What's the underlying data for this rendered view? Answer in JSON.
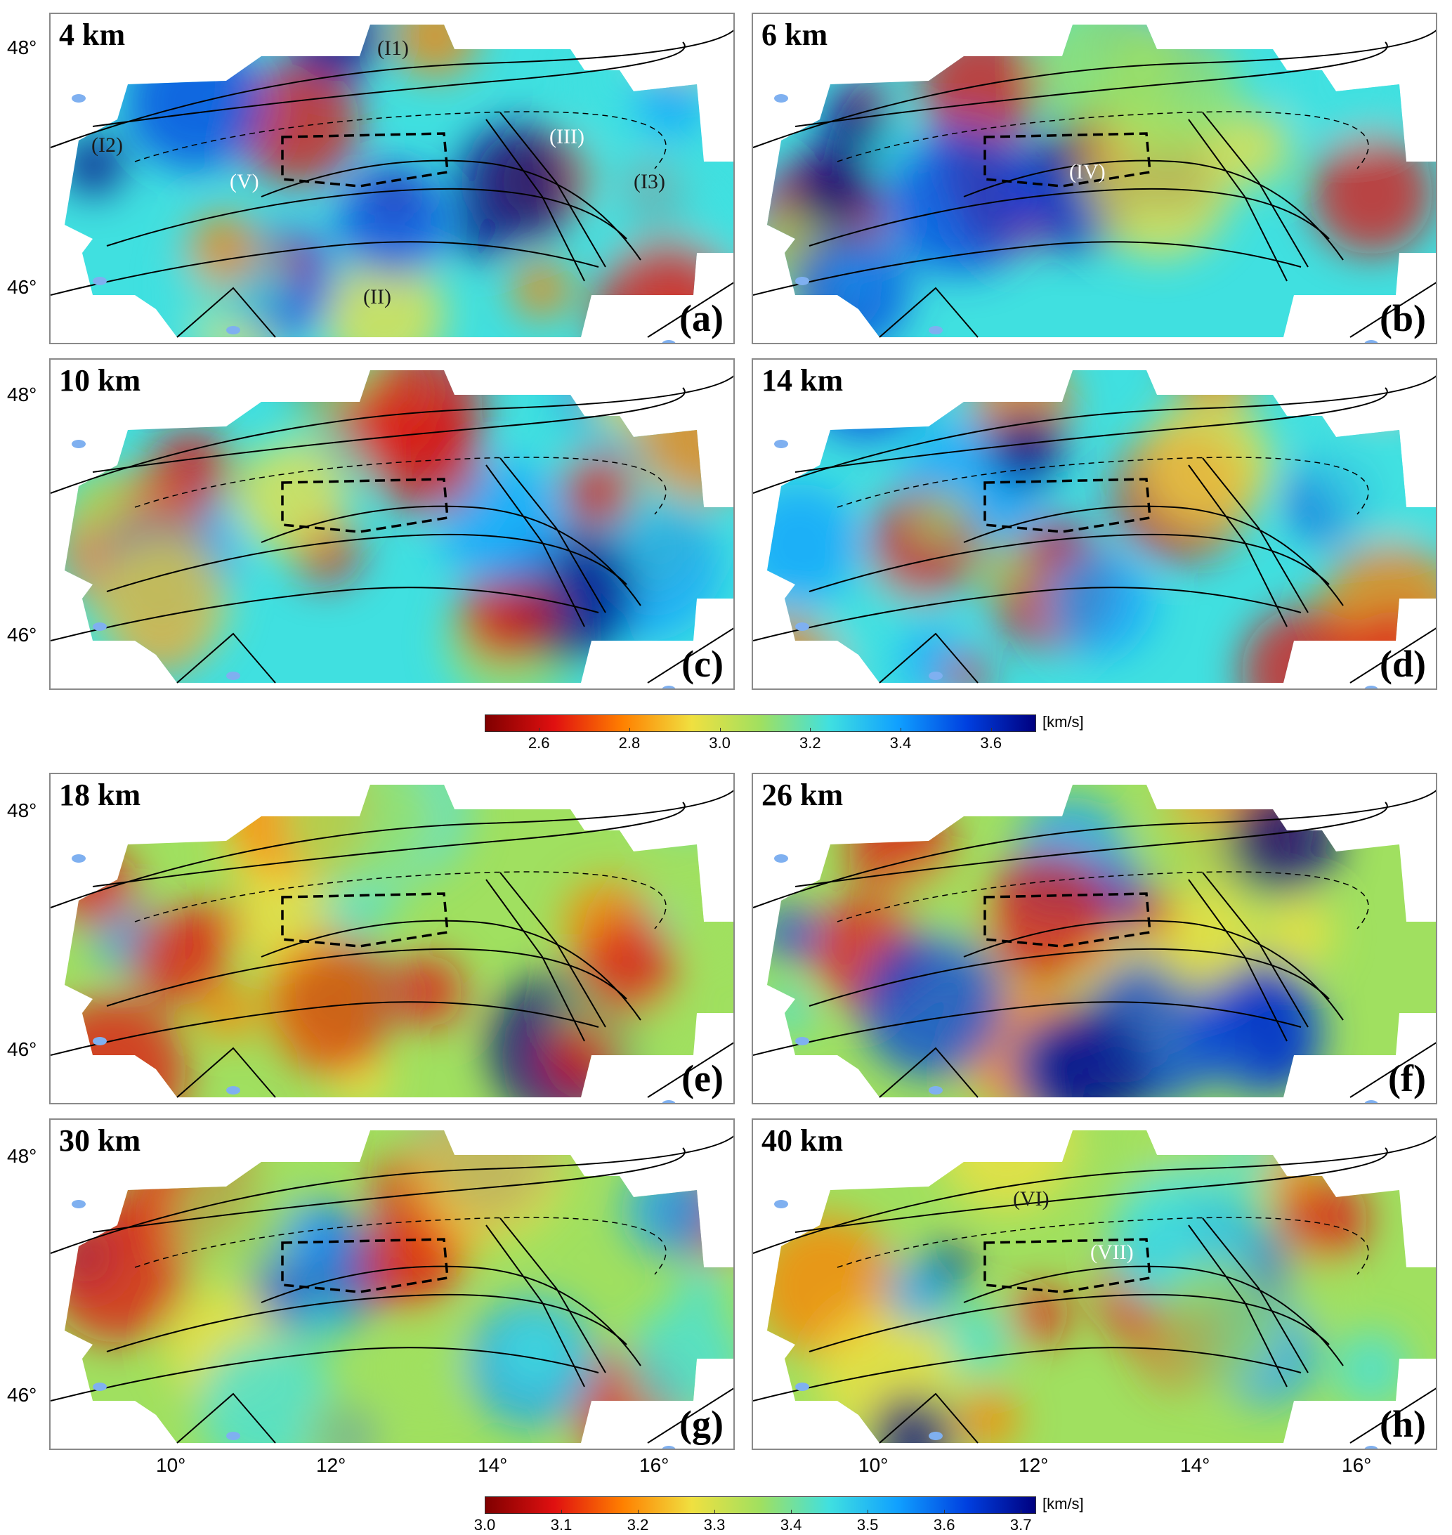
{
  "panels": [
    {
      "depth": "4 km",
      "letter": "(a)",
      "palette": "upper",
      "labels": [
        {
          "text": "(I1)",
          "color": "#1a1a1a"
        },
        {
          "text": "(I2)",
          "color": "#1a1a1a"
        },
        {
          "text": "(III)",
          "color": "#ffffff"
        },
        {
          "text": "(I3)",
          "color": "#1a1a1a"
        },
        {
          "text": "(V)",
          "color": "#ffffff"
        },
        {
          "text": "(II)",
          "color": "#1a1a1a"
        }
      ]
    },
    {
      "depth": "6 km",
      "letter": "(b)",
      "palette": "upper",
      "labels": [
        {
          "text": "(IV)",
          "color": "#ffffff"
        }
      ]
    },
    {
      "depth": "10 km",
      "letter": "(c)",
      "palette": "upper",
      "labels": []
    },
    {
      "depth": "14 km",
      "letter": "(d)",
      "palette": "upper",
      "labels": []
    },
    {
      "depth": "18 km",
      "letter": "(e)",
      "palette": "lower",
      "labels": []
    },
    {
      "depth": "26 km",
      "letter": "(f)",
      "palette": "lower",
      "labels": []
    },
    {
      "depth": "30 km",
      "letter": "(g)",
      "palette": "lower",
      "labels": []
    },
    {
      "depth": "40 km",
      "letter": "(h)",
      "palette": "lower",
      "labels": [
        {
          "text": "(VI)",
          "color": "#1a1a1a"
        },
        {
          "text": "(VII)",
          "color": "#ffffff"
        }
      ]
    }
  ],
  "y_axis_labels": [
    "48°",
    "46°"
  ],
  "x_axis_labels": [
    "10°",
    "12°",
    "14°",
    "16°"
  ],
  "colorbars": [
    {
      "ticks": [
        "2.6",
        "2.8",
        "3.0",
        "3.2",
        "3.4",
        "3.6"
      ],
      "unit": "[km/s]",
      "range": [
        2.48,
        3.7
      ]
    },
    {
      "ticks": [
        "3.0",
        "3.1",
        "3.2",
        "3.3",
        "3.4",
        "3.5",
        "3.6",
        "3.7"
      ],
      "unit": "[km/s]",
      "range": [
        3.0,
        3.72
      ]
    }
  ],
  "colors": {
    "colormap": [
      "#800000",
      "#e01010",
      "#ff8000",
      "#f0e040",
      "#a0e060",
      "#40e0e0",
      "#10a0ff",
      "#0040e0",
      "#000080"
    ],
    "fault_lines": "#000000",
    "lakes": "#7fb0f0",
    "borders": "#b0b0b0"
  }
}
